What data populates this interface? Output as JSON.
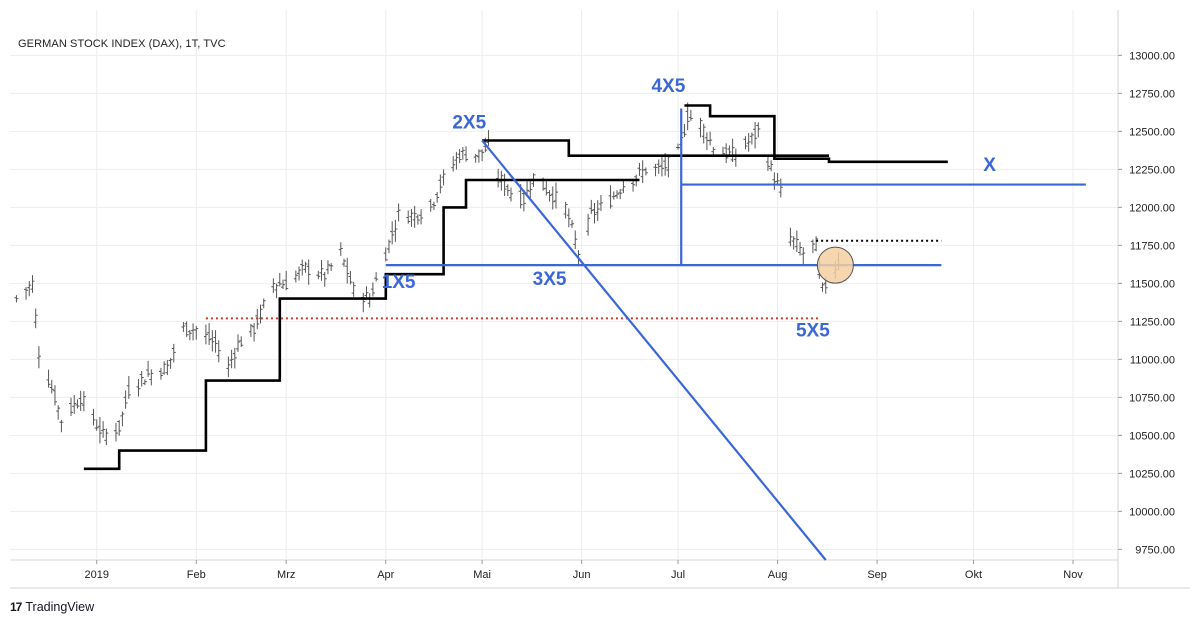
{
  "chart_data": {
    "type": "ohlc",
    "title": "GERMAN STOCK INDEX (DAX), 1T, TVC",
    "y_axis": {
      "ticks": [
        13000,
        12750,
        12500,
        12250,
        12000,
        11750,
        11500,
        11250,
        11000,
        10750,
        10500,
        10250,
        10000,
        9750
      ],
      "tick_labels": [
        "13000.00",
        "12750.00",
        "12500.00",
        "12250.00",
        "12000.00",
        "11750.00",
        "11500.00",
        "11250.00",
        "11000.00",
        "10750.00",
        "10500.00",
        "10250.00",
        "10000.00",
        "9750.00"
      ],
      "ylim": [
        9680,
        13180
      ]
    },
    "x_axis": {
      "xlim": [
        "2018-12-05",
        "2019-11-15"
      ],
      "ticks": [
        {
          "date": "2019-01-01",
          "label": "2019"
        },
        {
          "date": "2019-02-01",
          "label": "Feb"
        },
        {
          "date": "2019-03-01",
          "label": "Mrz"
        },
        {
          "date": "2019-04-01",
          "label": "Apr"
        },
        {
          "date": "2019-05-01",
          "label": "Mai"
        },
        {
          "date": "2019-06-01",
          "label": "Jun"
        },
        {
          "date": "2019-07-01",
          "label": "Jul"
        },
        {
          "date": "2019-08-01",
          "label": "Aug"
        },
        {
          "date": "2019-09-01",
          "label": "Sep"
        },
        {
          "date": "2019-10-01",
          "label": "Okt"
        },
        {
          "date": "2019-11-01",
          "label": "Nov"
        }
      ]
    },
    "price_path": [
      [
        "2018-12-07",
        11400
      ],
      [
        "2018-12-12",
        11500
      ],
      [
        "2018-12-14",
        11050
      ],
      [
        "2018-12-19",
        10750
      ],
      [
        "2018-12-21",
        10600
      ],
      [
        "2018-12-27",
        10750
      ],
      [
        "2019-01-03",
        10500
      ],
      [
        "2019-01-08",
        10550
      ],
      [
        "2019-01-11",
        10800
      ],
      [
        "2019-01-17",
        10900
      ],
      [
        "2019-01-23",
        10950
      ],
      [
        "2019-01-28",
        11200
      ],
      [
        "2019-02-01",
        11200
      ],
      [
        "2019-02-07",
        11100
      ],
      [
        "2019-02-11",
        10950
      ],
      [
        "2019-02-14",
        11100
      ],
      [
        "2019-02-19",
        11200
      ],
      [
        "2019-02-25",
        11500
      ],
      [
        "2019-03-01",
        11500
      ],
      [
        "2019-03-07",
        11600
      ],
      [
        "2019-03-13",
        11550
      ],
      [
        "2019-03-18",
        11700
      ],
      [
        "2019-03-22",
        11450
      ],
      [
        "2019-03-27",
        11400
      ],
      [
        "2019-04-01",
        11700
      ],
      [
        "2019-04-05",
        11950
      ],
      [
        "2019-04-10",
        11950
      ],
      [
        "2019-04-15",
        12000
      ],
      [
        "2019-04-18",
        12150
      ],
      [
        "2019-04-24",
        12350
      ],
      [
        "2019-04-30",
        12350
      ],
      [
        "2019-05-03",
        12400
      ],
      [
        "2019-05-06",
        12200
      ],
      [
        "2019-05-10",
        12100
      ],
      [
        "2019-05-14",
        12050
      ],
      [
        "2019-05-17",
        12200
      ],
      [
        "2019-05-22",
        12100
      ],
      [
        "2019-05-27",
        12000
      ],
      [
        "2019-05-31",
        11700
      ],
      [
        "2019-06-04",
        11950
      ],
      [
        "2019-06-10",
        12050
      ],
      [
        "2019-06-14",
        12150
      ],
      [
        "2019-06-18",
        12200
      ],
      [
        "2019-06-21",
        12250
      ],
      [
        "2019-06-26",
        12250
      ],
      [
        "2019-07-01",
        12350
      ],
      [
        "2019-07-04",
        12600
      ],
      [
        "2019-07-08",
        12550
      ],
      [
        "2019-07-12",
        12400
      ],
      [
        "2019-07-16",
        12350
      ],
      [
        "2019-07-19",
        12350
      ],
      [
        "2019-07-24",
        12450
      ],
      [
        "2019-07-26",
        12500
      ],
      [
        "2019-07-30",
        12250
      ],
      [
        "2019-08-02",
        12100
      ],
      [
        "2019-08-05",
        11800
      ],
      [
        "2019-08-09",
        11700
      ],
      [
        "2019-08-13",
        11750
      ],
      [
        "2019-08-15",
        11450
      ],
      [
        "2019-08-20",
        11650
      ]
    ],
    "point_and_figure_line_black": [
      [
        "2018-12-28",
        10280
      ],
      [
        "2019-01-08",
        10280
      ],
      [
        "2019-01-08",
        10400
      ],
      [
        "2019-02-04",
        10400
      ],
      [
        "2019-02-04",
        10860
      ],
      [
        "2019-02-27",
        10860
      ],
      [
        "2019-02-27",
        11400
      ],
      [
        "2019-04-01",
        11400
      ],
      [
        "2019-04-01",
        11560
      ],
      [
        "2019-04-19",
        11560
      ],
      [
        "2019-04-19",
        12000
      ],
      [
        "2019-04-26",
        12000
      ],
      [
        "2019-04-26",
        12180
      ],
      [
        "2019-06-19",
        12180
      ]
    ],
    "point_and_figure_line_black_upper": [
      [
        "2019-05-01",
        12440
      ],
      [
        "2019-05-28",
        12440
      ],
      [
        "2019-05-28",
        12340
      ],
      [
        "2019-08-17",
        12340
      ]
    ],
    "point_and_figure_line_black_top": [
      [
        "2019-07-03",
        12670
      ],
      [
        "2019-07-11",
        12670
      ],
      [
        "2019-07-11",
        12600
      ],
      [
        "2019-07-31",
        12600
      ],
      [
        "2019-07-31",
        12320
      ],
      [
        "2019-08-17",
        12320
      ],
      [
        "2019-08-17",
        12300
      ],
      [
        "2019-09-23",
        12300
      ]
    ],
    "blue_lines": [
      {
        "name": "horizontal-1x5-3x5",
        "from": [
          "2019-04-01",
          11620
        ],
        "to": [
          "2019-09-21",
          11620
        ]
      },
      {
        "name": "horizontal-x",
        "from": [
          "2019-07-02",
          12150
        ],
        "to": [
          "2019-11-05",
          12150
        ]
      },
      {
        "name": "vertical-4x5",
        "from": [
          "2019-07-02",
          11620
        ],
        "to": [
          "2019-07-02",
          12650
        ]
      },
      {
        "name": "diagonal-2x5",
        "from": [
          "2019-05-01",
          12440
        ],
        "to": [
          "2019-08-16",
          9680
        ]
      }
    ],
    "red_dotted_line": {
      "from": [
        "2019-02-04",
        11270
      ],
      "to": [
        "2019-08-14",
        11270
      ]
    },
    "black_dotted_line": {
      "from": [
        "2019-08-13",
        11780
      ],
      "to": [
        "2019-09-21",
        11780
      ]
    },
    "highlight_circle": {
      "date": "2019-08-19",
      "price": 11620,
      "color": "#f5cfa0"
    },
    "annotations": [
      {
        "text": "1X5",
        "date": "2019-04-05",
        "price": 11470
      },
      {
        "text": "2X5",
        "date": "2019-04-27",
        "price": 12520
      },
      {
        "text": "3X5",
        "date": "2019-05-22",
        "price": 11490
      },
      {
        "text": "4X5",
        "date": "2019-06-28",
        "price": 12760
      },
      {
        "text": "X",
        "date": "2019-10-06",
        "price": 12240
      },
      {
        "text": "5X5",
        "date": "2019-08-12",
        "price": 11150
      }
    ],
    "colors": {
      "blue": "#3a67d8",
      "black": "#000000",
      "red_dotted": "#c0392b",
      "bars": "#555555",
      "grid": "#ededed"
    }
  },
  "footer": {
    "brand": "TradingView",
    "logo": "17"
  }
}
